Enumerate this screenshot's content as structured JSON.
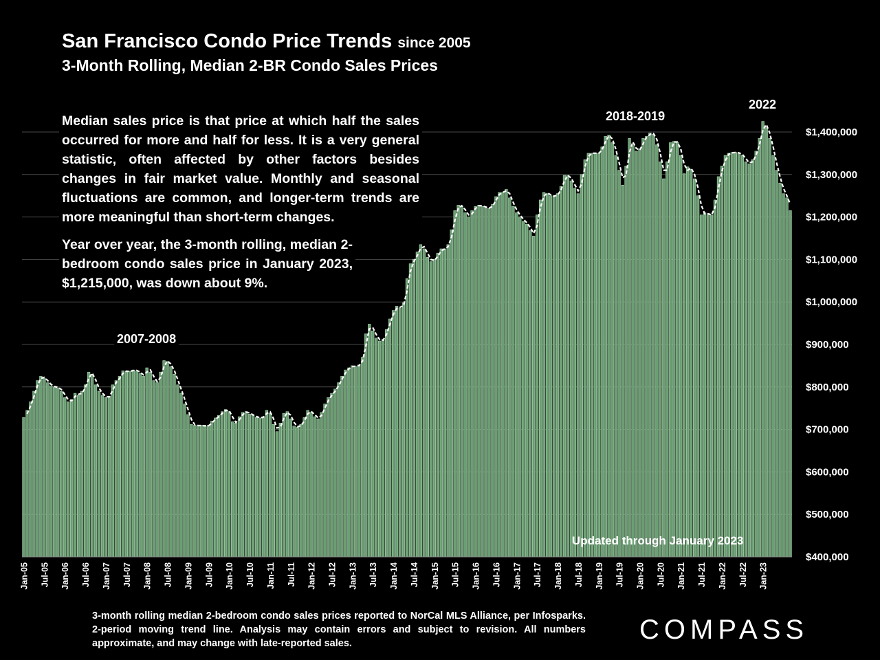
{
  "header": {
    "title": "San Francisco Condo Price Trends",
    "title_suffix": "since 2005",
    "subtitle": "3-Month Rolling, Median 2-BR Condo Sales Prices"
  },
  "text_block": {
    "paragraph1": "Median sales price is that price at which half the sales occurred for more and half for less. It is a very general statistic, often affected by other factors besides changes in fair market value. Monthly and seasonal fluctuations are common, and longer-term trends are more meaningful than short-term changes.",
    "paragraph2": "Year over year, the 3-month rolling, median 2-bedroom condo sales price in January 2023, $1,215,000, was down about 9%."
  },
  "annotations": {
    "period_2007": "2007-2008",
    "period_2018": "2018-2019",
    "period_2022": "2022",
    "updated": "Updated through January 2023"
  },
  "footnote": "3-month rolling median 2-bedroom condo sales prices reported to NorCal MLS Alliance, per Infosparks. 2-period moving trend line. Analysis may contain errors and subject to revision. All numbers approximate, and may change with late-reported sales.",
  "brand": {
    "name": "COMPASS"
  },
  "colors": {
    "background": "#000000",
    "bar_fill": "#6a9f72",
    "bar_stroke": "#bfe3c5",
    "trend_line": "#ffffff",
    "gridline": "#4a4a4a",
    "text": "#ffffff"
  },
  "chart_data": {
    "type": "bar",
    "title": "San Francisco Condo Price Trends since 2005",
    "subtitle": "3-Month Rolling, Median 2-BR Condo Sales Prices",
    "xlabel": "",
    "ylabel": "",
    "ylim": [
      400000,
      1400000
    ],
    "y_ticks": [
      "$400,000",
      "$500,000",
      "$600,000",
      "$700,000",
      "$800,000",
      "$900,000",
      "$1,000,000",
      "$1,100,000",
      "$1,200,000",
      "$1,300,000",
      "$1,400,000"
    ],
    "grid": true,
    "y_axis_position": "right",
    "trend_line": "2-period moving average (dashed white)",
    "x_tick_labels": [
      "Jan-05",
      "Jul-05",
      "Jan-06",
      "Jul-06",
      "Jan-07",
      "Jul-07",
      "Jan-08",
      "Jul-08",
      "Jan-09",
      "Jul-09",
      "Jan-10",
      "Jul-10",
      "Jan-11",
      "Jul-11",
      "Jan-12",
      "Jul-12",
      "Jan-13",
      "Jul-13",
      "Jan-14",
      "Jul-14",
      "Jan-15",
      "Jul-15",
      "Jan-16",
      "Jul-16",
      "Jan-17",
      "Jul-17",
      "Jan-18",
      "Jul-18",
      "Jan-19",
      "Jul-19",
      "Jan-20",
      "Jul-20",
      "Jan-21",
      "Jul-21",
      "Jan-22",
      "Jul-22",
      "Jan-23"
    ],
    "start_month": "Jan-05",
    "series": [
      {
        "name": "3-month rolling median 2-BR condo sales price",
        "values": [
          728000,
          745000,
          765000,
          790000,
          815000,
          825000,
          820000,
          810000,
          802000,
          800000,
          798000,
          790000,
          775000,
          765000,
          770000,
          785000,
          780000,
          790000,
          805000,
          835000,
          830000,
          805000,
          790000,
          780000,
          775000,
          778000,
          805000,
          815000,
          825000,
          838000,
          836000,
          837000,
          840000,
          838000,
          832000,
          825000,
          845000,
          835000,
          815000,
          810000,
          835000,
          862000,
          860000,
          848000,
          830000,
          805000,
          785000,
          760000,
          735000,
          712000,
          710000,
          708000,
          710000,
          707000,
          710000,
          720000,
          727000,
          733000,
          742000,
          747000,
          742000,
          718000,
          715000,
          730000,
          740000,
          742000,
          736000,
          733000,
          728000,
          727000,
          730000,
          745000,
          738000,
          712000,
          695000,
          715000,
          738000,
          742000,
          725000,
          708000,
          705000,
          712000,
          728000,
          745000,
          740000,
          730000,
          725000,
          740000,
          760000,
          775000,
          785000,
          795000,
          810000,
          825000,
          840000,
          845000,
          850000,
          848000,
          852000,
          870000,
          925000,
          948000,
          932000,
          915000,
          908000,
          912000,
          935000,
          960000,
          980000,
          990000,
          985000,
          998000,
          1055000,
          1090000,
          1100000,
          1118000,
          1135000,
          1125000,
          1105000,
          1095000,
          1100000,
          1115000,
          1125000,
          1125000,
          1135000,
          1170000,
          1215000,
          1228000,
          1225000,
          1210000,
          1200000,
          1215000,
          1225000,
          1228000,
          1225000,
          1222000,
          1220000,
          1230000,
          1248000,
          1258000,
          1258000,
          1265000,
          1245000,
          1225000,
          1210000,
          1200000,
          1190000,
          1183000,
          1168000,
          1155000,
          1205000,
          1240000,
          1258000,
          1255000,
          1250000,
          1248000,
          1255000,
          1272000,
          1298000,
          1298000,
          1285000,
          1268000,
          1255000,
          1300000,
          1335000,
          1350000,
          1350000,
          1350000,
          1350000,
          1365000,
          1390000,
          1393000,
          1375000,
          1345000,
          1310000,
          1275000,
          1320000,
          1385000,
          1368000,
          1355000,
          1360000,
          1385000,
          1390000,
          1398000,
          1395000,
          1370000,
          1330000,
          1290000,
          1330000,
          1375000,
          1378000,
          1375000,
          1345000,
          1302000,
          1318000,
          1312000,
          1290000,
          1250000,
          1205000,
          1210000,
          1205000,
          1205000,
          1240000,
          1295000,
          1320000,
          1345000,
          1350000,
          1352000,
          1352000,
          1350000,
          1345000,
          1330000,
          1325000,
          1335000,
          1355000,
          1385000,
          1425000,
          1410000,
          1385000,
          1345000,
          1310000,
          1280000,
          1255000,
          1245000,
          1215000
        ]
      }
    ]
  }
}
